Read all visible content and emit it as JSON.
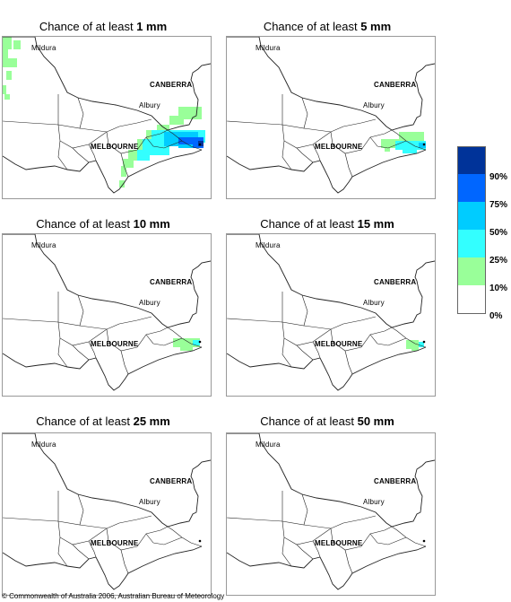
{
  "panels": [
    {
      "title_prefix": "Chance of at least ",
      "threshold": "1 mm"
    },
    {
      "title_prefix": "Chance of at least ",
      "threshold": "5 mm"
    },
    {
      "title_prefix": "Chance of at least ",
      "threshold": "10 mm"
    },
    {
      "title_prefix": "Chance of at least ",
      "threshold": "15 mm"
    },
    {
      "title_prefix": "Chance of at least ",
      "threshold": "25 mm"
    },
    {
      "title_prefix": "Chance of at least ",
      "threshold": "50 mm"
    }
  ],
  "places": {
    "mildura": "Mildura",
    "canberra": "CANBERRA",
    "albury": "Albury",
    "melbourne": "MELBOURNE"
  },
  "legend": {
    "colors": [
      "#003399",
      "#0066ff",
      "#00ccff",
      "#33ffff",
      "#99ff99",
      "#ffffff"
    ],
    "labels": [
      "90%",
      "75%",
      "50%",
      "25%",
      "10%",
      "0%"
    ]
  },
  "copyright": "© Commonwealth of Australia 2006, Australian Bureau of Meteorology"
}
